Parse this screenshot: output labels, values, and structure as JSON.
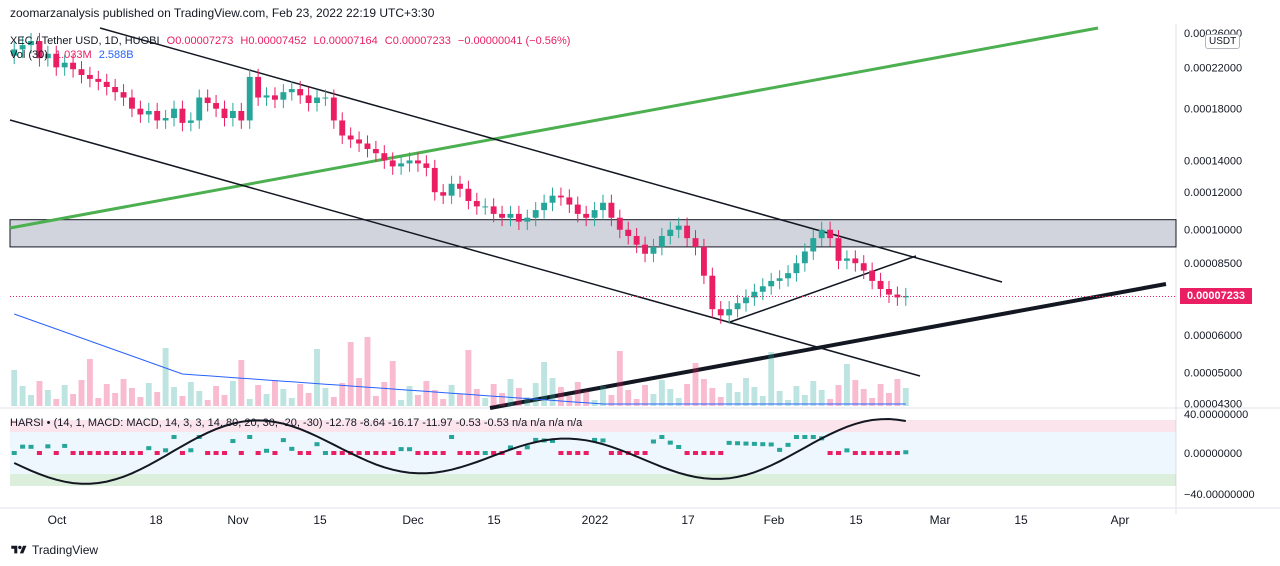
{
  "header": {
    "published_text": "zoomarzanalysis published on TradingView.com, Feb 23, 2022 22:19 UTC+3:30"
  },
  "legend": {
    "symbol": "XEC / Tether USD, 1D, HUOBI",
    "open": "O0.00007273",
    "high": "H0.00007452",
    "low": "L0.00007164",
    "close": "C0.00007233",
    "change": "−0.00000041 (−0.56%)",
    "volume_label": "Vol (30)",
    "volume_value": "1.033M",
    "volume_ma": "2.588B"
  },
  "harsi_legend": "HARSI • (14, 1, MACD: MACD, 14, 3, 3, 14, 80, 20, 30, -20, -30)  -12.78  -8.64  -16.17  -11.97  -0.53  -0.53  n/a  n/a  n/a  n/a",
  "currency_button": "USDT",
  "last_price": "0.00007233",
  "footer": {
    "brand": "TradingView"
  },
  "colors": {
    "up": "#26a69a",
    "down": "#e91e63",
    "green_line": "#4caf50",
    "zone": "#d1d4dc",
    "price_tag": "#e91e63",
    "volume_ma": "#2962ff"
  },
  "chart_data": {
    "type": "candlestick",
    "price_axis": {
      "scale": "log",
      "ticks": [
        "0.00026000",
        "0.00022000",
        "0.00018000",
        "0.00014000",
        "0.00012000",
        "0.00010000",
        "0.00008500",
        "0.00007233",
        "0.00006000",
        "0.00005000",
        "0.00004300"
      ]
    },
    "time_axis": {
      "ticks": [
        "Oct",
        "18",
        "Nov",
        "15",
        "Dec",
        "15",
        "2022",
        "17",
        "Feb",
        "15",
        "Mar",
        "15",
        "Apr"
      ]
    },
    "zone": {
      "top": 0.000105,
      "bottom": 9.2e-05
    },
    "harsi_axis": {
      "ticks": [
        "40.00000000",
        "0.00000000",
        "−40.00000000"
      ]
    },
    "close_series": [
      0.00024,
      0.000245,
      0.00025,
      0.00023,
      0.000235,
      0.00022,
      0.000225,
      0.000218,
      0.000212,
      0.000208,
      0.000205,
      0.0002,
      0.000195,
      0.00019,
      0.00018,
      0.000175,
      0.000178,
      0.00017,
      0.000172,
      0.00018,
      0.000168,
      0.00017,
      0.00019,
      0.000185,
      0.00018,
      0.000172,
      0.000178,
      0.00017,
      0.00021,
      0.00019,
      0.000192,
      0.000188,
      0.000195,
      0.000198,
      0.000192,
      0.000185,
      0.00019,
      0.00019,
      0.00017,
      0.000158,
      0.000155,
      0.000152,
      0.000148,
      0.000145,
      0.00014,
      0.000136,
      0.000138,
      0.00014,
      0.000138,
      0.000135,
      0.00012,
      0.000118,
      0.000125,
      0.000122,
      0.000115,
      0.000112,
      0.000112,
      0.000108,
      0.000106,
      0.000108,
      0.000104,
      0.000106,
      0.00011,
      0.000114,
      0.000118,
      0.000117,
      0.000113,
      0.000108,
      0.000106,
      0.00011,
      0.000114,
      0.000106,
      0.0001,
      9.7e-05,
      9.3e-05,
      8.9e-05,
      9.2e-05,
      9.7e-05,
      0.0001,
      0.000102,
      9.6e-05,
      9.2e-05,
      8e-05,
      6.8e-05,
      6.6e-05,
      6.8e-05,
      7e-05,
      7.2e-05,
      7.4e-05,
      7.6e-05,
      7.8e-05,
      7.9e-05,
      8.1e-05,
      8.5e-05,
      9e-05,
      9.6e-05,
      0.0001,
      9.6e-05,
      8.6e-05,
      8.7e-05,
      8.5e-05,
      8.2e-05,
      7.8e-05,
      7.5e-05,
      7.3e-05,
      7.2e-05,
      7.25e-05
    ]
  }
}
